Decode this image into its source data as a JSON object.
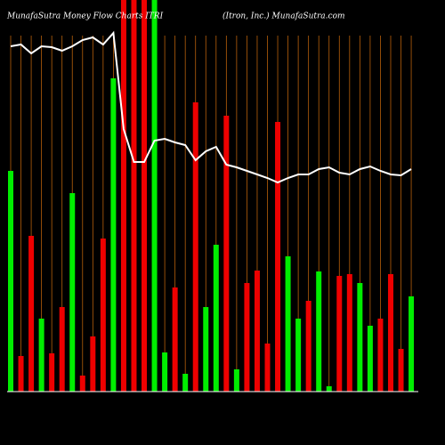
{
  "chart_data": {
    "type": "bar",
    "title": "MunafaSutra  Money Flow  Charts ITRI",
    "subtitle": "(Itron, Inc.) MunafaSutra.com",
    "categories": [
      null,
      null,
      null,
      null,
      null,
      null,
      null,
      null,
      null,
      null,
      null,
      null,
      null,
      null,
      null,
      null,
      null,
      null,
      null,
      null,
      null,
      null,
      null,
      null,
      null,
      null,
      null,
      null,
      null,
      null,
      null,
      null,
      null,
      null,
      null,
      null,
      null,
      null,
      null,
      null
    ],
    "values": [
      248,
      40,
      175,
      82,
      43,
      95,
      223,
      18,
      62,
      172,
      352,
      440,
      440,
      440,
      440,
      44,
      117,
      20,
      325,
      95,
      165,
      310,
      25,
      122,
      136,
      54,
      303,
      152,
      82,
      102,
      135,
      6,
      130,
      132,
      122,
      74,
      82,
      132,
      48,
      107
    ],
    "colors": [
      "#00ee00",
      "#ee0000",
      "#ee0000",
      "#00ee00",
      "#ee0000",
      "#ee0000",
      "#00ee00",
      "#ee0000",
      "#ee0000",
      "#ee0000",
      "#00ee00",
      "#ee0000",
      "#ee0000",
      "#ee0000",
      "#00ee00",
      "#00ee00",
      "#ee0000",
      "#00ee00",
      "#ee0000",
      "#00ee00",
      "#00ee00",
      "#ee0000",
      "#00ee00",
      "#ee0000",
      "#ee0000",
      "#ee0000",
      "#ee0000",
      "#00ee00",
      "#00ee00",
      "#ee0000",
      "#00ee00",
      "#00ee00",
      "#ee0000",
      "#ee0000",
      "#00ee00",
      "#00ee00",
      "#ee0000",
      "#ee0000",
      "#ee0000",
      "#00ee00"
    ],
    "line": {
      "color": "#ffffff",
      "values": [
        388,
        390,
        380,
        388,
        387,
        383,
        388,
        395,
        398,
        390,
        403,
        295,
        258,
        258,
        282,
        284,
        280,
        277,
        260,
        270,
        275,
        255,
        252,
        248,
        244,
        240,
        235,
        240,
        244,
        244,
        250,
        252,
        246,
        244,
        250,
        253,
        248,
        244,
        243,
        250
      ]
    },
    "ylim": [
      0,
      440
    ]
  }
}
